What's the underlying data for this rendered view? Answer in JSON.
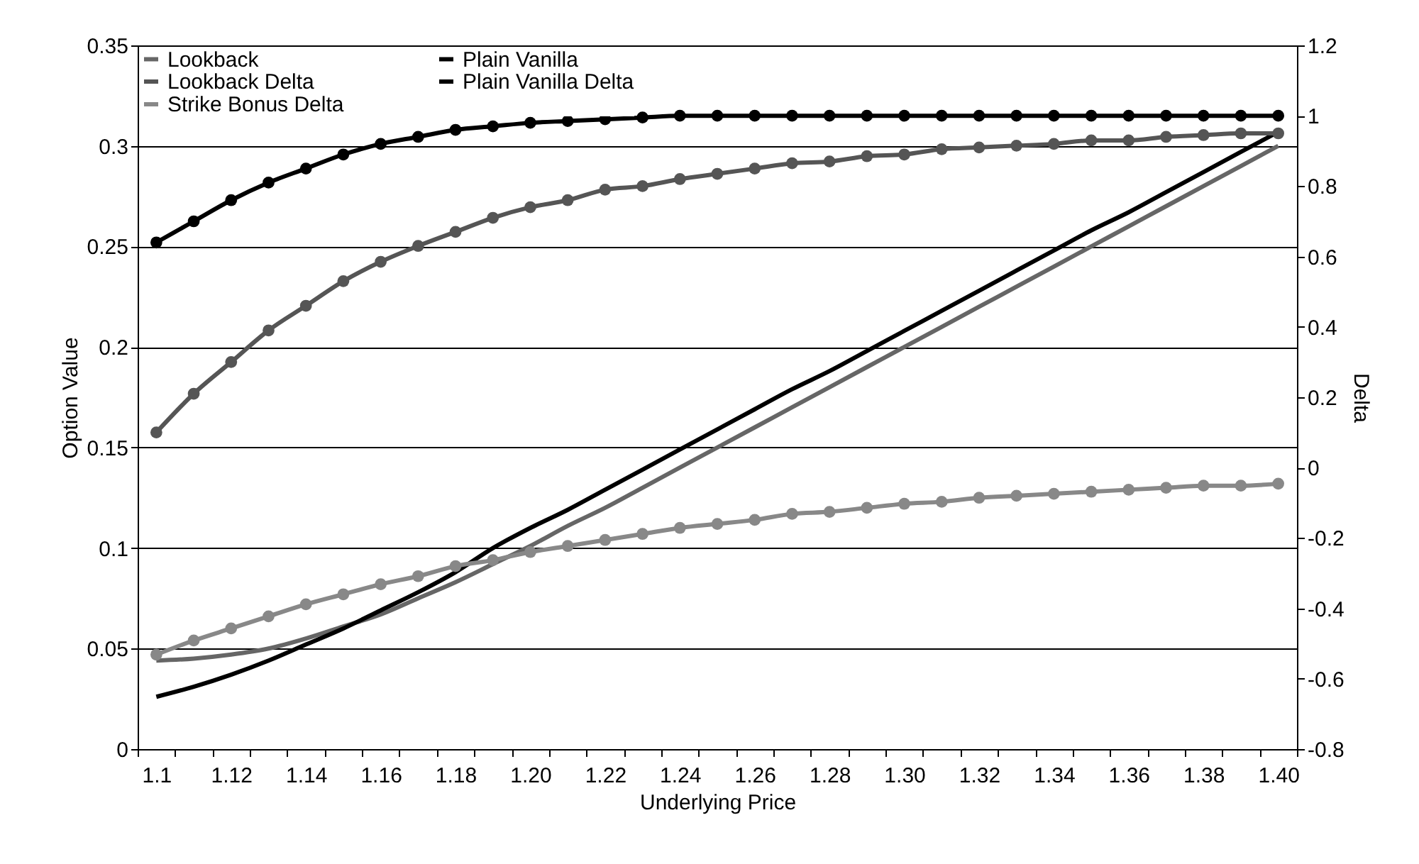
{
  "chart_data": {
    "type": "line",
    "categories": [
      "1.1",
      null,
      "1.12",
      null,
      "1.14",
      null,
      "1.16",
      null,
      "1.18",
      null,
      "1.20",
      null,
      "1.22",
      null,
      "1.24",
      null,
      "1.26",
      null,
      "1.28",
      null,
      "1.30",
      null,
      "1.32",
      null,
      "1.34",
      null,
      "1.36",
      null,
      "1.38",
      null,
      "1.40"
    ],
    "xlabel": "Underlying Price",
    "ylabel": "Option Value",
    "y2label": "Delta",
    "ylim": [
      0,
      0.35
    ],
    "yticks": [
      0,
      0.05,
      0.1,
      0.15,
      0.2,
      0.25,
      0.3,
      0.35
    ],
    "y2lim": [
      -0.8,
      1.2
    ],
    "y2ticks": [
      -0.8,
      -0.6,
      -0.4,
      -0.2,
      0,
      0.2,
      0.4,
      0.6,
      0.8,
      1,
      1.2
    ],
    "grid": "y",
    "legend": "top left",
    "series": [
      {
        "name": "Lookback",
        "color": "#666666",
        "axis": "y",
        "marker": "none",
        "values": [
          0.044,
          0.045,
          0.047,
          0.05,
          0.055,
          0.061,
          0.067,
          0.075,
          0.083,
          0.092,
          0.101,
          0.111,
          0.12,
          0.13,
          0.14,
          0.15,
          0.16,
          0.17,
          0.18,
          0.19,
          0.2,
          0.21,
          0.22,
          0.23,
          0.24,
          0.25,
          0.26,
          0.27,
          0.28,
          0.29,
          0.3
        ]
      },
      {
        "name": "Plain Vanilla",
        "color": "#000000",
        "axis": "y",
        "marker": "none",
        "values": [
          0.026,
          0.031,
          0.037,
          0.044,
          0.052,
          0.06,
          0.069,
          0.078,
          0.088,
          0.1,
          0.11,
          0.119,
          0.129,
          0.139,
          0.149,
          0.159,
          0.169,
          0.179,
          0.188,
          0.198,
          0.208,
          0.218,
          0.228,
          0.238,
          0.248,
          0.258,
          0.267,
          0.277,
          0.287,
          0.297,
          0.307
        ]
      },
      {
        "name": "Lookback Delta",
        "color": "#555555",
        "axis": "y2",
        "marker": "circle",
        "values": [
          0.1,
          0.21,
          0.3,
          0.39,
          0.46,
          0.53,
          0.585,
          0.63,
          0.67,
          0.71,
          0.74,
          0.76,
          0.79,
          0.8,
          0.82,
          0.835,
          0.85,
          0.865,
          0.87,
          0.885,
          0.89,
          0.905,
          0.91,
          0.915,
          0.92,
          0.93,
          0.93,
          0.94,
          0.945,
          0.95,
          0.95
        ]
      },
      {
        "name": "Plain Vanilla Delta",
        "color": "#000000",
        "axis": "y2",
        "marker": "circle",
        "values": [
          0.64,
          0.7,
          0.76,
          0.81,
          0.85,
          0.89,
          0.92,
          0.94,
          0.96,
          0.97,
          0.98,
          0.985,
          0.99,
          0.995,
          1,
          1,
          1,
          1,
          1,
          1,
          1,
          1,
          1,
          1,
          1,
          1,
          1,
          1,
          1,
          1,
          1
        ]
      },
      {
        "name": "Strike Bonus Delta",
        "color": "#888888",
        "axis": "y",
        "marker": "circle",
        "values": [
          0.047,
          0.054,
          0.06,
          0.066,
          0.072,
          0.077,
          0.082,
          0.086,
          0.091,
          0.094,
          0.098,
          0.101,
          0.104,
          0.107,
          0.11,
          0.112,
          0.114,
          0.117,
          0.118,
          0.12,
          0.122,
          0.123,
          0.125,
          0.126,
          0.127,
          0.128,
          0.129,
          0.13,
          0.131,
          0.131,
          0.132
        ]
      }
    ]
  }
}
